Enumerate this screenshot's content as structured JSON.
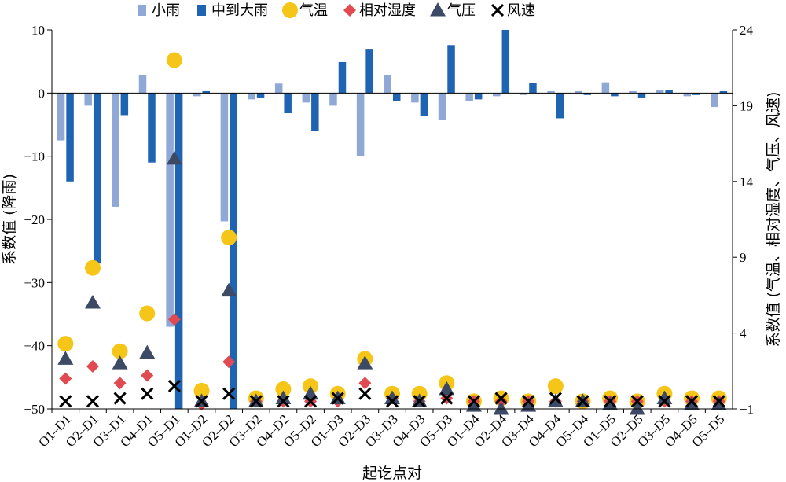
{
  "chart_data": {
    "type": "bar",
    "categories": [
      "O1–D1",
      "O2–D1",
      "O3–D1",
      "O4–D1",
      "O5–D1",
      "O1–D2",
      "O2–D2",
      "O3–D2",
      "O4–D2",
      "O5–D2",
      "O1–D3",
      "O2–D3",
      "O3–D3",
      "O4–D3",
      "O5–D3",
      "O1–D4",
      "O2–D4",
      "O3–D4",
      "O4–D4",
      "O5–D4",
      "O1–D5",
      "O2–D5",
      "O3–D5",
      "O4–D5",
      "O5–D5"
    ],
    "xlabel": "起讫点对",
    "ylabel_left": "系数值 (降雨)",
    "ylabel_right": "系数值 (气温、相对湿度、气压、风速)",
    "ylim_left": [
      -50,
      10
    ],
    "yticks_left": [
      "10",
      "0",
      "−10",
      "−20",
      "−30",
      "−40",
      "−50"
    ],
    "ylim_right": [
      -1,
      24
    ],
    "yticks_right": [
      "24",
      "19",
      "14",
      "9",
      "4",
      "−1"
    ],
    "legend_position": "top",
    "series": [
      {
        "name": "小雨",
        "kind": "bar",
        "axis": "left",
        "color": "#8fa8d6",
        "values": [
          -7.5,
          -2,
          -18,
          2.8,
          -37,
          -0.5,
          -20.3,
          -1,
          1.5,
          -1.5,
          -2,
          -10,
          2.8,
          -1.5,
          -4.2,
          -1.3,
          -0.5,
          -0.3,
          0.3,
          0.3,
          1.7,
          0.3,
          0.5,
          -0.5,
          -2.2
        ]
      },
      {
        "name": "中到大雨",
        "kind": "bar",
        "axis": "left",
        "color": "#1f63b3",
        "values": [
          -14,
          -27,
          -3.5,
          -11,
          -50,
          0.3,
          -50,
          -0.7,
          -3.2,
          -6,
          4.9,
          7,
          -1.3,
          -3.6,
          7.6,
          -1,
          10.2,
          1.6,
          -4,
          -0.3,
          -0.5,
          -0.7,
          0.5,
          -0.3,
          0.3
        ]
      },
      {
        "name": "气温",
        "kind": "marker",
        "axis": "right",
        "marker": "circle",
        "color": "#f5c518",
        "values": [
          3.3,
          8.3,
          2.8,
          5.3,
          22,
          0.2,
          10.3,
          -0.3,
          0.3,
          0.5,
          0,
          2.3,
          0,
          0,
          0.7,
          -0.5,
          -0.3,
          -0.5,
          0.5,
          -0.5,
          -0.3,
          -0.5,
          0,
          -0.3,
          -0.3
        ]
      },
      {
        "name": "相对湿度",
        "kind": "marker",
        "axis": "right",
        "marker": "diamond",
        "color": "#e04a50",
        "values": [
          1,
          1.8,
          0.7,
          1.2,
          4.9,
          -0.7,
          2.1,
          -0.5,
          -0.5,
          -0.5,
          -0.5,
          0.7,
          -0.3,
          -0.5,
          -0.3,
          -0.5,
          -0.5,
          -0.5,
          -0.5,
          -0.5,
          -0.5,
          -0.5,
          -0.5,
          -0.5,
          -0.5
        ]
      },
      {
        "name": "气压",
        "kind": "marker",
        "axis": "right",
        "marker": "triangle",
        "color": "#3d4a66",
        "values": [
          2.3,
          6,
          2,
          2.7,
          15.5,
          -0.5,
          6.8,
          -0.5,
          -0.3,
          0,
          -0.3,
          2,
          -0.3,
          -0.5,
          0.3,
          -0.8,
          -1,
          -0.8,
          -0.5,
          -0.5,
          -0.7,
          -1,
          -0.3,
          -0.7,
          -0.7
        ]
      },
      {
        "name": "风速",
        "kind": "marker",
        "axis": "right",
        "marker": "x",
        "color": "#000000",
        "values": [
          -0.5,
          -0.5,
          -0.3,
          0,
          0.5,
          -0.5,
          0,
          -0.5,
          -0.5,
          -0.5,
          -0.3,
          0,
          -0.5,
          -0.5,
          -0.3,
          -0.5,
          -0.3,
          -0.5,
          -0.3,
          -0.5,
          -0.5,
          -0.5,
          -0.5,
          -0.5,
          -0.5
        ]
      }
    ]
  }
}
